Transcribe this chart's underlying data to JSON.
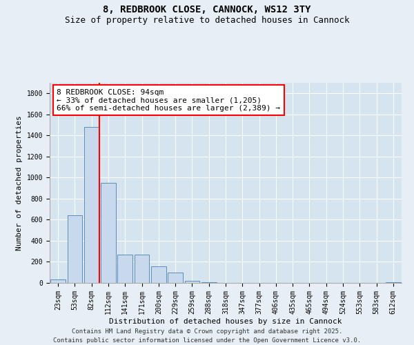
{
  "title1": "8, REDBROOK CLOSE, CANNOCK, WS12 3TY",
  "title2": "Size of property relative to detached houses in Cannock",
  "xlabel": "Distribution of detached houses by size in Cannock",
  "ylabel": "Number of detached properties",
  "categories": [
    "23sqm",
    "53sqm",
    "82sqm",
    "112sqm",
    "141sqm",
    "171sqm",
    "200sqm",
    "229sqm",
    "259sqm",
    "288sqm",
    "318sqm",
    "347sqm",
    "377sqm",
    "406sqm",
    "435sqm",
    "465sqm",
    "494sqm",
    "524sqm",
    "553sqm",
    "583sqm",
    "612sqm"
  ],
  "values": [
    30,
    640,
    1480,
    950,
    270,
    270,
    155,
    100,
    20,
    5,
    2,
    1,
    0,
    0,
    0,
    0,
    0,
    0,
    0,
    0,
    5
  ],
  "bar_color": "#c9d9ed",
  "bar_edge_color": "#5b8db8",
  "vline_color": "red",
  "ylim": [
    0,
    1900
  ],
  "yticks": [
    0,
    200,
    400,
    600,
    800,
    1000,
    1200,
    1400,
    1600,
    1800
  ],
  "annotation_line1": "8 REDBROOK CLOSE: 94sqm",
  "annotation_line2": "← 33% of detached houses are smaller (1,205)",
  "annotation_line3": "66% of semi-detached houses are larger (2,389) →",
  "footer1": "Contains HM Land Registry data © Crown copyright and database right 2025.",
  "footer2": "Contains public sector information licensed under the Open Government Licence v3.0.",
  "bg_color": "#e8eef5",
  "plot_bg_color": "#d6e4f0",
  "title1_fontsize": 10,
  "title2_fontsize": 9,
  "annot_fontsize": 8,
  "axis_label_fontsize": 8,
  "tick_fontsize": 7,
  "footer_fontsize": 6.5
}
